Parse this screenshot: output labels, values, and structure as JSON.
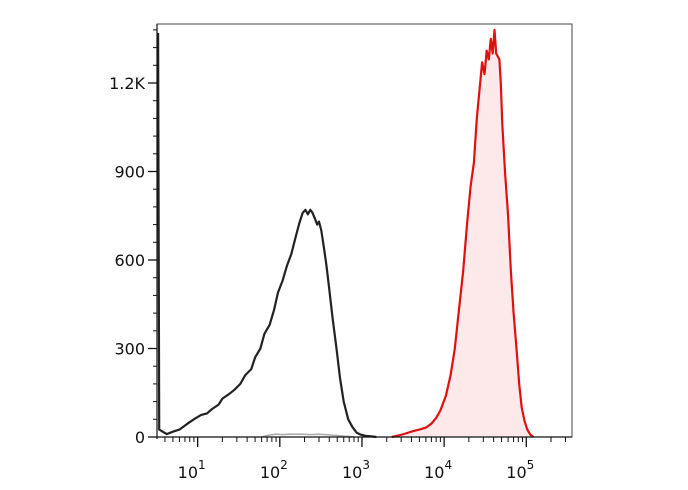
{
  "chart_data": {
    "type": "area",
    "title": "",
    "xlabel": "",
    "ylabel": "",
    "x_scale": "log",
    "xlim": [
      3.2,
      360000
    ],
    "ylim": [
      0,
      1400
    ],
    "grid": false,
    "x_ticks": [
      {
        "value": 10,
        "base": "10",
        "exp": "1"
      },
      {
        "value": 100,
        "base": "10",
        "exp": "2"
      },
      {
        "value": 1000,
        "base": "10",
        "exp": "3"
      },
      {
        "value": 10000,
        "base": "10",
        "exp": "4"
      },
      {
        "value": 100000,
        "base": "10",
        "exp": "5"
      }
    ],
    "y_ticks": [
      {
        "value": 0,
        "label": "0"
      },
      {
        "value": 300,
        "label": "300"
      },
      {
        "value": 600,
        "label": "600"
      },
      {
        "value": 900,
        "label": "900"
      },
      {
        "value": 1200,
        "label": "1.2K"
      }
    ],
    "series": [
      {
        "color": "#222222",
        "fill": "none",
        "points": [
          [
            3.3,
            1370
          ],
          [
            3.4,
            25
          ],
          [
            4.2,
            10
          ],
          [
            5.0,
            18
          ],
          [
            6.0,
            25
          ],
          [
            7.5,
            45
          ],
          [
            9.0,
            60
          ],
          [
            11,
            75
          ],
          [
            13,
            80
          ],
          [
            15,
            95
          ],
          [
            18,
            110
          ],
          [
            20,
            130
          ],
          [
            24,
            145
          ],
          [
            28,
            160
          ],
          [
            33,
            180
          ],
          [
            38,
            210
          ],
          [
            45,
            230
          ],
          [
            50,
            270
          ],
          [
            58,
            300
          ],
          [
            65,
            350
          ],
          [
            75,
            380
          ],
          [
            85,
            430
          ],
          [
            95,
            490
          ],
          [
            108,
            530
          ],
          [
            122,
            580
          ],
          [
            138,
            620
          ],
          [
            150,
            660
          ],
          [
            160,
            690
          ],
          [
            175,
            730
          ],
          [
            190,
            760
          ],
          [
            205,
            770
          ],
          [
            220,
            755
          ],
          [
            235,
            770
          ],
          [
            250,
            760
          ],
          [
            268,
            740
          ],
          [
            285,
            720
          ],
          [
            300,
            730
          ],
          [
            320,
            700
          ],
          [
            345,
            640
          ],
          [
            370,
            580
          ],
          [
            400,
            500
          ],
          [
            440,
            400
          ],
          [
            490,
            300
          ],
          [
            540,
            200
          ],
          [
            600,
            120
          ],
          [
            680,
            60
          ],
          [
            760,
            35
          ],
          [
            860,
            15
          ],
          [
            960,
            8
          ],
          [
            1100,
            4
          ],
          [
            1300,
            2
          ],
          [
            1500,
            0
          ]
        ]
      },
      {
        "color": "#aaaaaa",
        "fill": "none",
        "points": [
          [
            60,
            0
          ],
          [
            70,
            5
          ],
          [
            90,
            10
          ],
          [
            110,
            8
          ],
          [
            130,
            10
          ],
          [
            150,
            9
          ],
          [
            180,
            10
          ],
          [
            230,
            8
          ],
          [
            300,
            9
          ],
          [
            400,
            7
          ],
          [
            500,
            5
          ],
          [
            600,
            3
          ],
          [
            700,
            2
          ],
          [
            800,
            0
          ]
        ]
      },
      {
        "color": "#e01010",
        "fill": "#fde8ea",
        "points": [
          [
            2300,
            0
          ],
          [
            2800,
            5
          ],
          [
            3400,
            12
          ],
          [
            4200,
            20
          ],
          [
            5000,
            25
          ],
          [
            6000,
            32
          ],
          [
            7000,
            45
          ],
          [
            8000,
            65
          ],
          [
            9000,
            90
          ],
          [
            10500,
            140
          ],
          [
            12000,
            210
          ],
          [
            13500,
            300
          ],
          [
            15000,
            420
          ],
          [
            17000,
            560
          ],
          [
            19000,
            720
          ],
          [
            21000,
            850
          ],
          [
            23000,
            930
          ],
          [
            25000,
            1080
          ],
          [
            27000,
            1180
          ],
          [
            29000,
            1270
          ],
          [
            31000,
            1230
          ],
          [
            33000,
            1310
          ],
          [
            35000,
            1280
          ],
          [
            37000,
            1350
          ],
          [
            39000,
            1300
          ],
          [
            41000,
            1380
          ],
          [
            43000,
            1300
          ],
          [
            45000,
            1290
          ],
          [
            47000,
            1280
          ],
          [
            49000,
            1200
          ],
          [
            51000,
            1060
          ],
          [
            55000,
            900
          ],
          [
            60000,
            750
          ],
          [
            65000,
            560
          ],
          [
            70000,
            420
          ],
          [
            76000,
            300
          ],
          [
            82000,
            180
          ],
          [
            88000,
            100
          ],
          [
            95000,
            55
          ],
          [
            103000,
            25
          ],
          [
            112000,
            8
          ],
          [
            122000,
            0
          ]
        ]
      }
    ]
  }
}
